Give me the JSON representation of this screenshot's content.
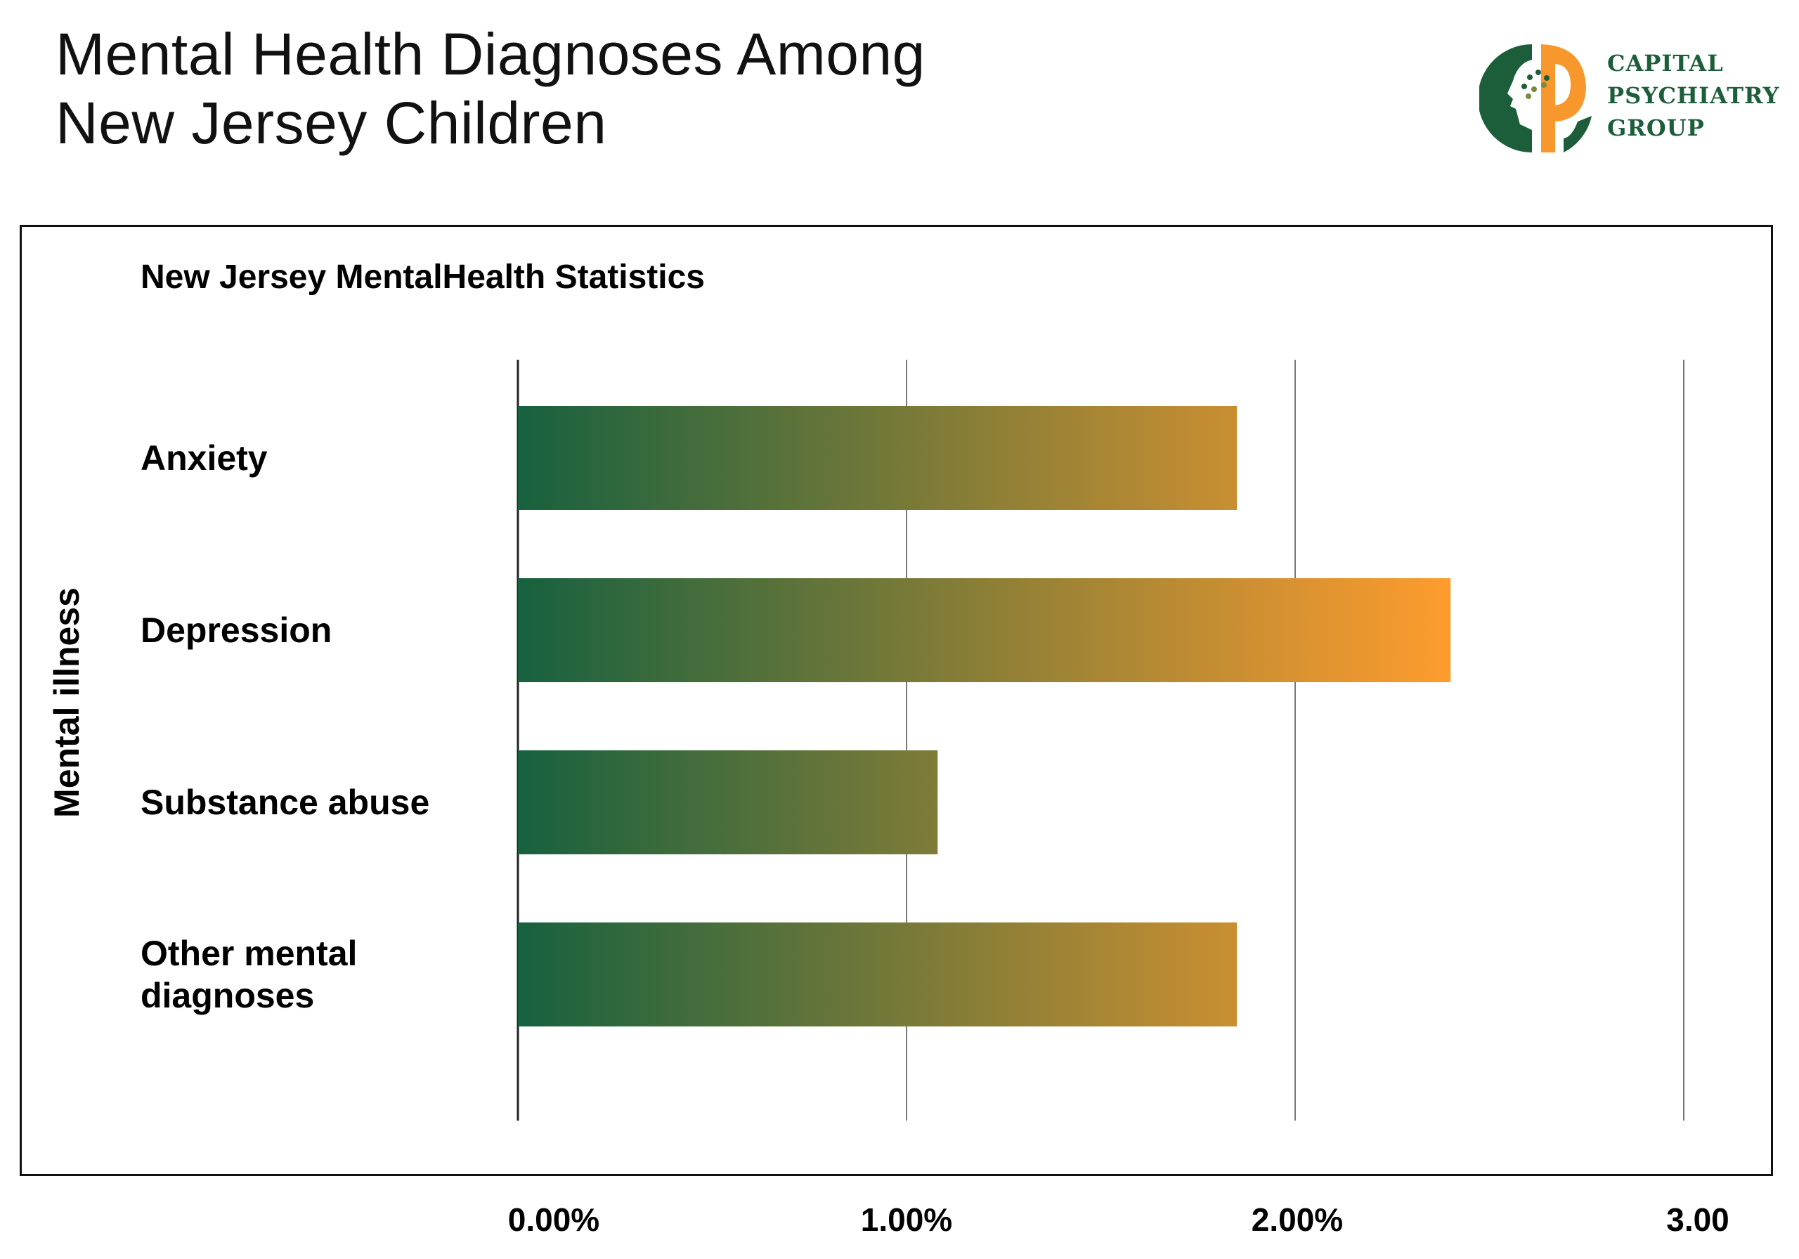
{
  "header": {
    "title_lines": [
      "Mental Health Diagnoses Among",
      "New Jersey Children"
    ],
    "logo_text": [
      "CAPITAL",
      "PSYCHIATRY",
      "GROUP"
    ]
  },
  "colors": {
    "gradient_start": "#17613f",
    "gradient_end": "#ff9c2e",
    "logo_green": "#1d5e3a",
    "logo_orange": "#f7972c"
  },
  "chart_data": {
    "type": "bar",
    "orientation": "horizontal",
    "title": "New Jersey MentalHealth Statistics",
    "ylabel": "Mental illness",
    "xlabel": "",
    "categories": [
      "Anxiety",
      "Depression",
      "Substance abuse",
      "Other mental diagnoses"
    ],
    "category_label_lines": [
      [
        "Anxiety"
      ],
      [
        "Depression"
      ],
      [
        "Substance abuse"
      ],
      [
        "Other mental",
        "diagnoses"
      ]
    ],
    "values": [
      1.85,
      2.4,
      1.08,
      1.85
    ],
    "unit": "%",
    "xlim": [
      0,
      3
    ],
    "xticks": [
      0,
      1,
      2,
      3
    ],
    "xtick_labels": [
      "0.00%",
      "1.00%",
      "2.00%",
      "3.00"
    ],
    "grid": "vertical",
    "bar_fill": "horizontal gradient green to orange"
  }
}
